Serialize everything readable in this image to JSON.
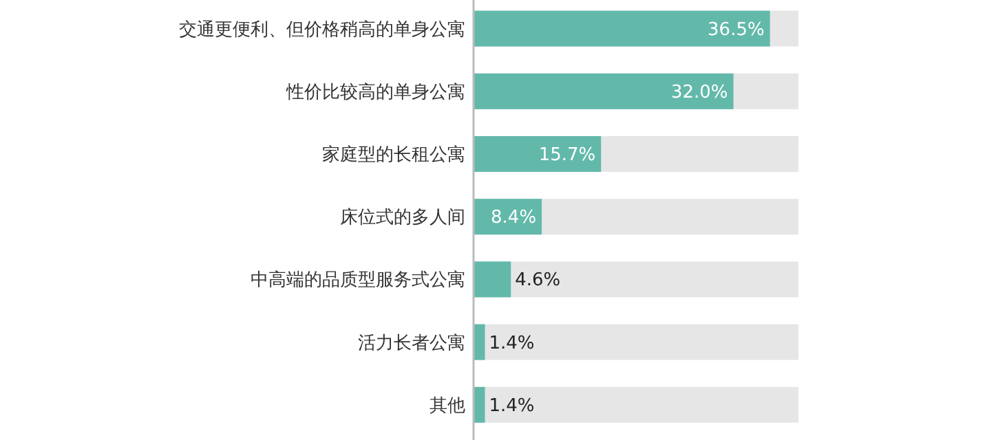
{
  "chart_data": {
    "type": "bar",
    "orientation": "horizontal",
    "categories": [
      "交通更便利、但价格稍高的单身公寓",
      "性价比较高的单身公寓",
      "家庭型的长租公寓",
      "床位式的多人间",
      "中高端的品质型服务式公寓",
      "活力长者公寓",
      "其他"
    ],
    "values": [
      36.5,
      32.0,
      15.7,
      8.4,
      4.6,
      1.4,
      1.4
    ],
    "value_labels": [
      "36.5%",
      "32.0%",
      "15.7%",
      "8.4%",
      "4.6%",
      "1.4%",
      "1.4%"
    ],
    "color": "#62b9aa",
    "xlim": [
      0,
      40
    ]
  }
}
